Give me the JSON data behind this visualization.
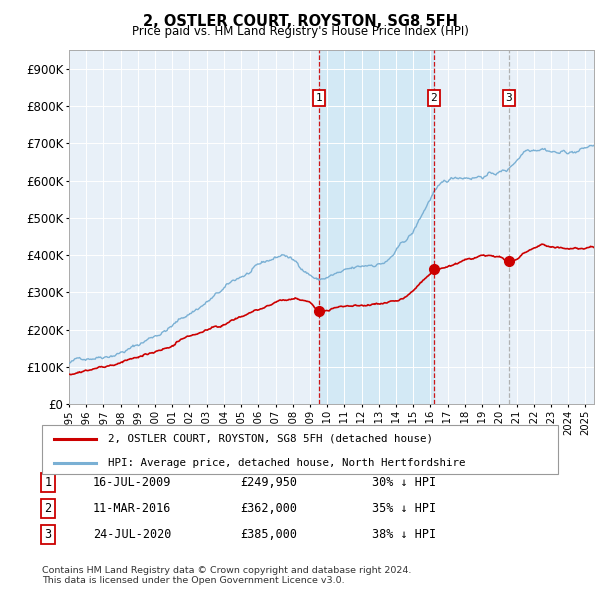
{
  "title": "2, OSTLER COURT, ROYSTON, SG8 5FH",
  "subtitle": "Price paid vs. HM Land Registry's House Price Index (HPI)",
  "hpi_color": "#7ab0d4",
  "price_color": "#cc0000",
  "shade_color": "#d0e8f5",
  "plot_bg_color": "#e8f0f8",
  "ylim": [
    0,
    950000
  ],
  "yticks": [
    0,
    100000,
    200000,
    300000,
    400000,
    500000,
    600000,
    700000,
    800000,
    900000
  ],
  "ytick_labels": [
    "£0",
    "£100K",
    "£200K",
    "£300K",
    "£400K",
    "£500K",
    "£600K",
    "£700K",
    "£800K",
    "£900K"
  ],
  "sales": [
    {
      "date_num": 2009.54,
      "price": 249950,
      "label": "1"
    },
    {
      "date_num": 2016.19,
      "price": 362000,
      "label": "2"
    },
    {
      "date_num": 2020.56,
      "price": 385000,
      "label": "3"
    }
  ],
  "vlines_red": [
    2009.54,
    2016.19
  ],
  "vlines_gray": [
    2020.56
  ],
  "shade_xmin": 2009.54,
  "shade_xmax": 2016.19,
  "legend_items": [
    {
      "label": "2, OSTLER COURT, ROYSTON, SG8 5FH (detached house)",
      "color": "#cc0000"
    },
    {
      "label": "HPI: Average price, detached house, North Hertfordshire",
      "color": "#7ab0d4"
    }
  ],
  "table_rows": [
    {
      "num": "1",
      "date": "16-JUL-2009",
      "price": "£249,950",
      "note": "30% ↓ HPI"
    },
    {
      "num": "2",
      "date": "11-MAR-2016",
      "price": "£362,000",
      "note": "35% ↓ HPI"
    },
    {
      "num": "3",
      "date": "24-JUL-2020",
      "price": "£385,000",
      "note": "38% ↓ HPI"
    }
  ],
  "footnote": "Contains HM Land Registry data © Crown copyright and database right 2024.\nThis data is licensed under the Open Government Licence v3.0.",
  "xmin": 1995.0,
  "xmax": 2025.5
}
